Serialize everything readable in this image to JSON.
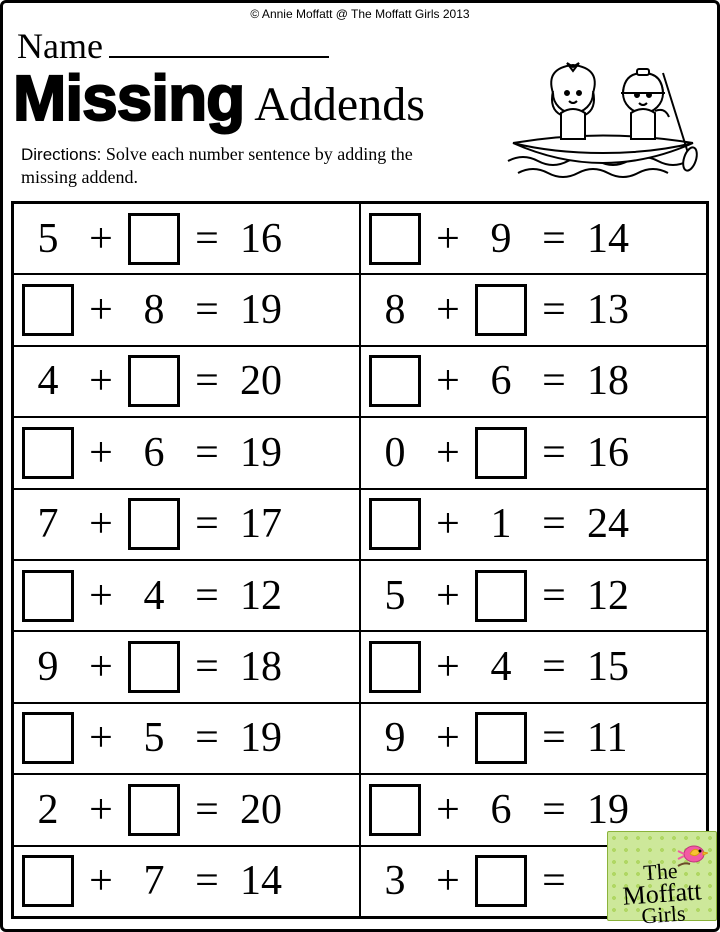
{
  "copyright": "© Annie Moffatt @ The Moffatt Girls 2013",
  "name_label": "Name",
  "title_bold": "Missing",
  "title_rest": "Addends",
  "directions_label": "Directions:",
  "directions_text": "Solve each number sentence by adding the missing addend.",
  "plus": "+",
  "equals": "=",
  "badge_line1": "The",
  "badge_line2": "Moffatt",
  "badge_line3": "Girls",
  "problems": [
    {
      "a": "5",
      "a_box": false,
      "b": "",
      "b_box": true,
      "r": "16"
    },
    {
      "a": "",
      "a_box": true,
      "b": "9",
      "b_box": false,
      "r": "14"
    },
    {
      "a": "",
      "a_box": true,
      "b": "8",
      "b_box": false,
      "r": "19"
    },
    {
      "a": "8",
      "a_box": false,
      "b": "",
      "b_box": true,
      "r": "13"
    },
    {
      "a": "4",
      "a_box": false,
      "b": "",
      "b_box": true,
      "r": "20"
    },
    {
      "a": "",
      "a_box": true,
      "b": "6",
      "b_box": false,
      "r": "18"
    },
    {
      "a": "",
      "a_box": true,
      "b": "6",
      "b_box": false,
      "r": "19"
    },
    {
      "a": "0",
      "a_box": false,
      "b": "",
      "b_box": true,
      "r": "16"
    },
    {
      "a": "7",
      "a_box": false,
      "b": "",
      "b_box": true,
      "r": "17"
    },
    {
      "a": "",
      "a_box": true,
      "b": "1",
      "b_box": false,
      "r": "24"
    },
    {
      "a": "",
      "a_box": true,
      "b": "4",
      "b_box": false,
      "r": "12"
    },
    {
      "a": "5",
      "a_box": false,
      "b": "",
      "b_box": true,
      "r": "12"
    },
    {
      "a": "9",
      "a_box": false,
      "b": "",
      "b_box": true,
      "r": "18"
    },
    {
      "a": "",
      "a_box": true,
      "b": "4",
      "b_box": false,
      "r": "15"
    },
    {
      "a": "",
      "a_box": true,
      "b": "5",
      "b_box": false,
      "r": "19"
    },
    {
      "a": "9",
      "a_box": false,
      "b": "",
      "b_box": true,
      "r": "11"
    },
    {
      "a": "2",
      "a_box": false,
      "b": "",
      "b_box": true,
      "r": "20"
    },
    {
      "a": "",
      "a_box": true,
      "b": "6",
      "b_box": false,
      "r": "19"
    },
    {
      "a": "",
      "a_box": true,
      "b": "7",
      "b_box": false,
      "r": "14"
    },
    {
      "a": "3",
      "a_box": false,
      "b": "",
      "b_box": true,
      "r": ""
    }
  ],
  "colors": {
    "ink": "#000000",
    "paper": "#ffffff",
    "badge_bg": "#cde89a",
    "badge_border": "#8ab23a",
    "bird_body": "#f25aa3",
    "bird_wing": "#f7c331",
    "branch": "#6b4a2a"
  }
}
